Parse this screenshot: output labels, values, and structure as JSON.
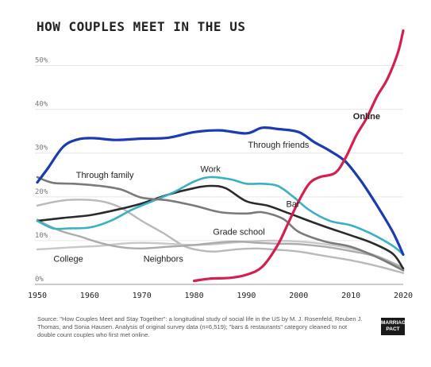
{
  "chart_data": {
    "type": "line",
    "title": "HOW COUPLES MEET IN THE US",
    "xlabel": "",
    "ylabel": "",
    "xlim": [
      1950,
      2020
    ],
    "ylim": [
      0,
      55
    ],
    "x_ticks": [
      1950,
      1960,
      1970,
      1980,
      1990,
      2000,
      2010,
      2020
    ],
    "x_tick_labels": [
      "1950",
      "1960",
      "1970",
      "1980",
      "1990",
      "2000",
      "2010",
      "2020"
    ],
    "y_ticks": [
      0,
      10,
      20,
      30,
      40,
      50
    ],
    "y_tick_labels": [
      "0%",
      "10%",
      "20%",
      "30%",
      "40%",
      "50%"
    ],
    "grid": "horizontal",
    "series": [
      {
        "name": "Online",
        "color": "#d4204e",
        "width": 3.2,
        "points": [
          [
            1980,
            0.8
          ],
          [
            1983,
            1.3
          ],
          [
            1987,
            1.5
          ],
          [
            1990,
            2.2
          ],
          [
            1993,
            4
          ],
          [
            1996,
            9
          ],
          [
            1998,
            14
          ],
          [
            2000,
            19
          ],
          [
            2002,
            23
          ],
          [
            2004,
            24.5
          ],
          [
            2007,
            25.5
          ],
          [
            2009,
            29
          ],
          [
            2011,
            34
          ],
          [
            2013,
            38
          ],
          [
            2015,
            43
          ],
          [
            2017,
            47
          ],
          [
            2019,
            53
          ],
          [
            2020,
            58
          ]
        ]
      },
      {
        "name": "Through friends",
        "color": "#1c3bb0",
        "width": 3.2,
        "points": [
          [
            1950,
            23.3
          ],
          [
            1952,
            26.5
          ],
          [
            1955,
            31.5
          ],
          [
            1958,
            33.2
          ],
          [
            1961,
            33.4
          ],
          [
            1965,
            33
          ],
          [
            1970,
            33.3
          ],
          [
            1975,
            33.5
          ],
          [
            1980,
            34.8
          ],
          [
            1985,
            35.2
          ],
          [
            1990,
            34.5
          ],
          [
            1993,
            35.8
          ],
          [
            1996,
            35.5
          ],
          [
            2000,
            34.8
          ],
          [
            2003,
            32.5
          ],
          [
            2006,
            30.5
          ],
          [
            2009,
            28
          ],
          [
            2012,
            23.5
          ],
          [
            2015,
            18
          ],
          [
            2018,
            12
          ],
          [
            2020,
            6.8
          ]
        ]
      },
      {
        "name": "Through family",
        "color": "#7a7a7a",
        "width": 2.6,
        "points": [
          [
            1950,
            24.5
          ],
          [
            1953,
            23.2
          ],
          [
            1957,
            23
          ],
          [
            1962,
            22.5
          ],
          [
            1966,
            21.7
          ],
          [
            1970,
            19.8
          ],
          [
            1975,
            19.2
          ],
          [
            1980,
            18
          ],
          [
            1985,
            16.5
          ],
          [
            1990,
            16.2
          ],
          [
            1993,
            16.5
          ],
          [
            1997,
            15
          ],
          [
            2000,
            12
          ],
          [
            2005,
            9.8
          ],
          [
            2010,
            8.6
          ],
          [
            2015,
            6.2
          ],
          [
            2020,
            3.2
          ]
        ]
      },
      {
        "name": "Work",
        "color": "#3ab0c5",
        "width": 2.6,
        "points": [
          [
            1950,
            14.5
          ],
          [
            1953,
            12.8
          ],
          [
            1956,
            12.8
          ],
          [
            1960,
            13
          ],
          [
            1964,
            14.5
          ],
          [
            1968,
            17
          ],
          [
            1972,
            19
          ],
          [
            1976,
            21
          ],
          [
            1980,
            23.5
          ],
          [
            1983,
            24.5
          ],
          [
            1987,
            24
          ],
          [
            1990,
            23
          ],
          [
            1993,
            23
          ],
          [
            1996,
            22.5
          ],
          [
            1999,
            20
          ],
          [
            2002,
            17
          ],
          [
            2006,
            14.5
          ],
          [
            2010,
            13.5
          ],
          [
            2014,
            11.5
          ],
          [
            2018,
            8.8
          ],
          [
            2020,
            6.8
          ]
        ]
      },
      {
        "name": "Bar",
        "color": "#2a2a2a",
        "width": 2.6,
        "points": [
          [
            1950,
            14.5
          ],
          [
            1955,
            15.2
          ],
          [
            1960,
            15.8
          ],
          [
            1965,
            17
          ],
          [
            1970,
            18.5
          ],
          [
            1975,
            20.5
          ],
          [
            1980,
            22
          ],
          [
            1983,
            22.5
          ],
          [
            1986,
            22
          ],
          [
            1990,
            19
          ],
          [
            1994,
            18
          ],
          [
            1998,
            16.3
          ],
          [
            2002,
            14.5
          ],
          [
            2006,
            12.8
          ],
          [
            2010,
            11.2
          ],
          [
            2014,
            9.5
          ],
          [
            2018,
            7
          ],
          [
            2020,
            3.6
          ]
        ]
      },
      {
        "name": "Grade school",
        "color": "#ababab",
        "width": 2.4,
        "points": [
          [
            1950,
            14.8
          ],
          [
            1952,
            13.5
          ],
          [
            1955,
            12
          ],
          [
            1958,
            11
          ],
          [
            1962,
            9.5
          ],
          [
            1966,
            8.5
          ],
          [
            1970,
            8.2
          ],
          [
            1975,
            8.6
          ],
          [
            1980,
            9
          ],
          [
            1984,
            9.5
          ],
          [
            1988,
            9.8
          ],
          [
            1992,
            9.5
          ],
          [
            1996,
            9.3
          ],
          [
            2000,
            9.2
          ],
          [
            2005,
            8.6
          ],
          [
            2010,
            7.6
          ],
          [
            2015,
            6.3
          ],
          [
            2020,
            3.8
          ]
        ]
      },
      {
        "name": "College",
        "color": "#c8c8c8",
        "width": 2.4,
        "points": [
          [
            1950,
            8
          ],
          [
            1953,
            8.2
          ],
          [
            1957,
            8.5
          ],
          [
            1962,
            8.8
          ],
          [
            1966,
            9.3
          ],
          [
            1970,
            9.5
          ],
          [
            1975,
            9.3
          ],
          [
            1980,
            9
          ],
          [
            1985,
            9.3
          ],
          [
            1990,
            9.8
          ],
          [
            1995,
            10
          ],
          [
            2000,
            9.8
          ],
          [
            2005,
            9.2
          ],
          [
            2010,
            8.2
          ],
          [
            2015,
            6.5
          ],
          [
            2020,
            3.8
          ]
        ]
      },
      {
        "name": "Neighbors",
        "color": "#b9b9b9",
        "width": 2.4,
        "points": [
          [
            1950,
            18
          ],
          [
            1953,
            18.8
          ],
          [
            1956,
            19.3
          ],
          [
            1960,
            19.3
          ],
          [
            1963,
            18.8
          ],
          [
            1966,
            17.5
          ],
          [
            1970,
            14.5
          ],
          [
            1974,
            11.8
          ],
          [
            1978,
            8.8
          ],
          [
            1981,
            7.8
          ],
          [
            1984,
            7.5
          ],
          [
            1988,
            8
          ],
          [
            1992,
            8.2
          ],
          [
            1996,
            7.9
          ],
          [
            2000,
            7.5
          ],
          [
            2005,
            6.5
          ],
          [
            2010,
            5.5
          ],
          [
            2015,
            4.2
          ],
          [
            2020,
            2.6
          ]
        ]
      }
    ],
    "labels": [
      {
        "series": "Online",
        "text": "Online",
        "x": 2010.4,
        "y": 37.8,
        "bold": true
      },
      {
        "series": "Through friends",
        "text": "Through friends",
        "x": 1990.3,
        "y": 31.2,
        "bold": false
      },
      {
        "series": "Through family",
        "text": "Through family",
        "x": 1957.4,
        "y": 24.3,
        "bold": false
      },
      {
        "series": "Work",
        "text": "Work",
        "x": 1981.2,
        "y": 25.7,
        "bold": false
      },
      {
        "series": "Bar",
        "text": "Bar",
        "x": 1997.6,
        "y": 17.7,
        "bold": false
      },
      {
        "series": "Grade school",
        "text": "Grade school",
        "x": 1983.6,
        "y": 11.3,
        "bold": false
      },
      {
        "series": "College",
        "text": "College",
        "x": 1953.1,
        "y": 5.2,
        "bold": false
      },
      {
        "series": "Neighbors",
        "text": "Neighbors",
        "x": 1970.3,
        "y": 5.2,
        "bold": false
      }
    ]
  },
  "source": {
    "text": "Source: \"How Couples Meet and Stay Together\": a longitudinal study of social life in the US by M. J. Rosenfeld, Reuben J. Thomas, and Sonia Hausen. Analysis of original survey data (n=6,519); \"bars & restaurants\" category cleaned to not double count couples who first met online."
  },
  "logo": {
    "line1": "MARRIAGE",
    "line2": "PACT"
  }
}
